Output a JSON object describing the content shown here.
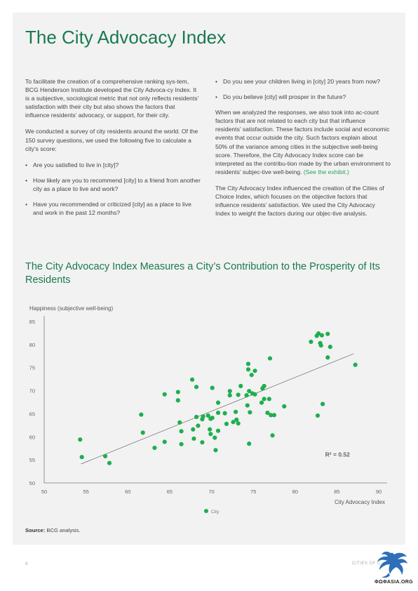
{
  "page": {
    "title": "The City Advocacy Index",
    "left_column": {
      "p1": "To facilitate the creation of a comprehensive ranking sys-tem, BCG Henderson Institute developed the City Advoca-cy Index. It is a subjective, sociological metric that not only reflects residents’ satisfaction with their city but also shows the factors that influence residents’ advocacy, or support, for their city.",
      "p2": "We conducted a survey of city residents around the world. Of the 150 survey questions, we used the following five to calculate a city’s score:",
      "bullets": [
        "Are you satisfied to live in [city]?",
        "How likely are you to recommend [city] to a friend from another city as a place to live and work?",
        "Have you recommended or criticized [city] as a place to live and work in the past 12 months?"
      ]
    },
    "right_column": {
      "bullets": [
        "Do you see your children living in [city] 20 years from now?",
        "Do you believe [city] will prosper in the future?"
      ],
      "p1": "When we analyzed the responses, we also took into ac-count factors that are not related to each city but that influence residents’ satisfaction. These factors include social and economic events that occur outside the city. Such factors explain about 50% of the variance among cities in the subjective well-being score. Therefore, the City Advocacy Index score can be interpreted as the contribu-tion made by the urban environment to residents’ subjec-tive well-being.",
      "p1_link": "(See the exhibit.)",
      "p2": "The City Advocacy Index influenced the creation of the Cities of Choice Index, which focuses on the objective factors that influence residents’ satisfaction. We used the City Advocacy Index to weight the factors during our objec-tive analysis."
    },
    "chart_heading": "The City Advocacy Index Measures a City’s Contribution to the Prosperity of Its Residents",
    "source_label": "Source:",
    "source_text": "BCG analysis.",
    "page_number": "6",
    "footer_text": "CITIES OF C",
    "watermark": "ΦΩΦΑSIA.ORG"
  },
  "chart_data": {
    "type": "scatter",
    "ylabel": "Happiness (subjective well-being)",
    "xlabel": "City Advocacy Index",
    "xlim": [
      50,
      90
    ],
    "ylim": [
      50,
      85
    ],
    "xticks": [
      50,
      55,
      60,
      65,
      70,
      75,
      80,
      85,
      90
    ],
    "yticks": [
      50,
      55,
      60,
      65,
      70,
      75,
      80,
      85
    ],
    "grid": false,
    "legend": "bottom-center",
    "annotation": "R² = 0.52",
    "marker_color": "#1fae4f",
    "trendline": {
      "x": [
        54.4,
        87.0
      ],
      "y": [
        54.1,
        78.0
      ]
    },
    "series": [
      {
        "name": "City",
        "points": [
          [
            54.3,
            59.4
          ],
          [
            54.5,
            55.6
          ],
          [
            57.3,
            55.8
          ],
          [
            57.8,
            54.3
          ],
          [
            61.6,
            64.8
          ],
          [
            61.8,
            60.9
          ],
          [
            63.2,
            57.6
          ],
          [
            64.4,
            58.9
          ],
          [
            64.4,
            69.2
          ],
          [
            66.0,
            69.7
          ],
          [
            66.0,
            67.9
          ],
          [
            66.2,
            63.1
          ],
          [
            66.4,
            61.2
          ],
          [
            66.4,
            58.4
          ],
          [
            67.7,
            72.4
          ],
          [
            67.8,
            61.6
          ],
          [
            67.9,
            59.6
          ],
          [
            68.2,
            70.8
          ],
          [
            68.2,
            64.3
          ],
          [
            68.4,
            62.4
          ],
          [
            68.9,
            58.8
          ],
          [
            68.9,
            63.8
          ],
          [
            69.0,
            64.4
          ],
          [
            69.6,
            64.6
          ],
          [
            69.8,
            61.6
          ],
          [
            69.9,
            60.6
          ],
          [
            69.9,
            63.9
          ],
          [
            70.1,
            70.6
          ],
          [
            70.1,
            64.1
          ],
          [
            70.4,
            59.8
          ],
          [
            70.5,
            57.1
          ],
          [
            70.8,
            65.2
          ],
          [
            70.8,
            61.3
          ],
          [
            70.8,
            67.4
          ],
          [
            71.6,
            65.1
          ],
          [
            71.8,
            62.8
          ],
          [
            72.2,
            69.0
          ],
          [
            72.2,
            69.9
          ],
          [
            72.6,
            63.2
          ],
          [
            72.9,
            65.4
          ],
          [
            73.0,
            63.7
          ],
          [
            73.2,
            62.9
          ],
          [
            73.2,
            69.1
          ],
          [
            73.5,
            71.0
          ],
          [
            74.2,
            69.0
          ],
          [
            74.3,
            66.8
          ],
          [
            74.4,
            74.6
          ],
          [
            74.4,
            75.8
          ],
          [
            74.5,
            69.9
          ],
          [
            74.5,
            58.5
          ],
          [
            74.6,
            65.3
          ],
          [
            74.8,
            73.4
          ],
          [
            74.9,
            69.4
          ],
          [
            75.2,
            69.2
          ],
          [
            75.2,
            74.3
          ],
          [
            76.0,
            67.4
          ],
          [
            76.1,
            70.5
          ],
          [
            76.3,
            71.0
          ],
          [
            76.3,
            68.2
          ],
          [
            76.7,
            65.2
          ],
          [
            76.9,
            68.2
          ],
          [
            77.0,
            77.0
          ],
          [
            77.1,
            64.7
          ],
          [
            77.3,
            60.3
          ],
          [
            77.5,
            64.7
          ],
          [
            78.7,
            66.6
          ],
          [
            81.9,
            80.6
          ],
          [
            82.6,
            81.9
          ],
          [
            82.7,
            64.6
          ],
          [
            82.8,
            82.4
          ],
          [
            83.0,
            80.3
          ],
          [
            83.1,
            79.8
          ],
          [
            83.2,
            82.0
          ],
          [
            83.3,
            67.1
          ],
          [
            83.9,
            77.2
          ],
          [
            83.9,
            82.3
          ],
          [
            84.2,
            79.5
          ],
          [
            87.2,
            75.6
          ]
        ]
      }
    ]
  }
}
